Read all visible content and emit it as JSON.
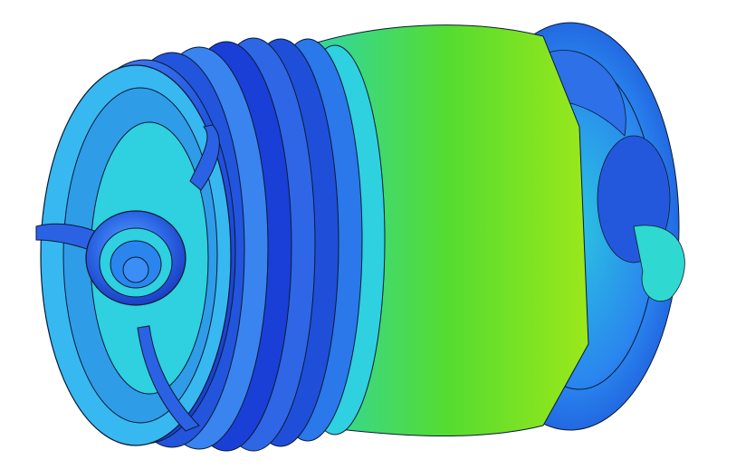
{
  "scene": {
    "subject": "vortex-isosurface-rendering",
    "background_color": "#ffffff",
    "colors": {
      "deep_blue": "#1a3fd6",
      "royal_blue": "#2f6ae8",
      "light_blue": "#3aa0f0",
      "cyan": "#33d2e6",
      "teal": "#2bd6b0",
      "green": "#4cd832",
      "lime": "#8ee61a",
      "contour": "#0a1a33"
    },
    "icons": [
      "vortex-rings",
      "hub-ring",
      "hub-cap",
      "spoke-arm",
      "turbulent-wake"
    ]
  }
}
